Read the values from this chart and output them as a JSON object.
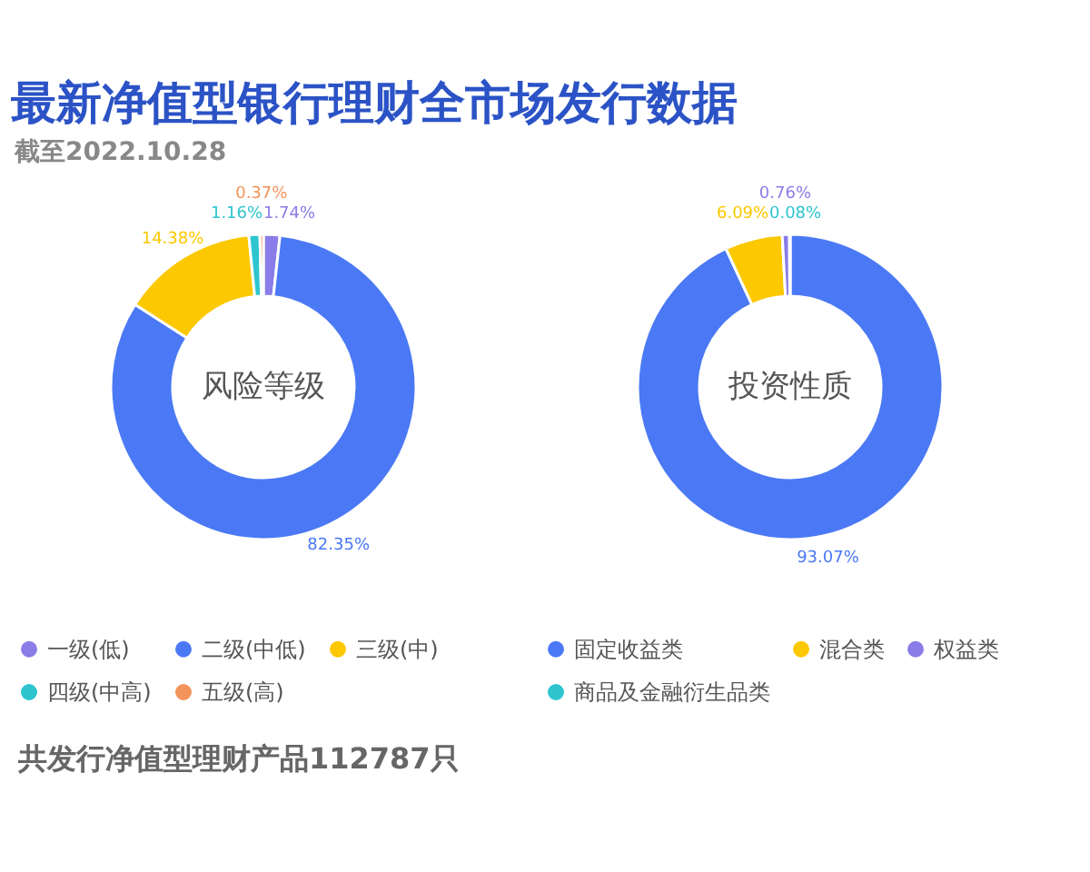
{
  "chart_data": [
    {
      "type": "donut",
      "title": "最新净值型银行理财全市场发行数据",
      "subtitle": "截至2022.10.28",
      "annotations": [
        "风险等级",
        "共发行净值型理财产品112787只"
      ],
      "legend": "bottom",
      "categories": [
        "一级(低)",
        "二级(中低)",
        "三级(中)",
        "四级(中高)",
        "五级(高)"
      ],
      "values": [
        1.74,
        82.35,
        14.38,
        1.16,
        0.37
      ],
      "value_labels": [
        "1.74%",
        "82.35%",
        "14.38%",
        "1.16%",
        "0.37%"
      ],
      "colors": [
        "#8a7de8",
        "#4b79f5",
        "#fcc800",
        "#2ec5cf",
        "#f2935a"
      ]
    },
    {
      "type": "donut",
      "annotations": [
        "投资性质"
      ],
      "legend": "bottom",
      "categories": [
        "固定收益类",
        "混合类",
        "权益类",
        "商品及金融衍生品类"
      ],
      "values": [
        93.07,
        6.09,
        0.76,
        0.08
      ],
      "value_labels": [
        "93.07%",
        "6.09%",
        "0.76%",
        "0.08%"
      ],
      "colors": [
        "#4b79f5",
        "#fcc800",
        "#8a7de8",
        "#2ec5cf"
      ]
    }
  ]
}
